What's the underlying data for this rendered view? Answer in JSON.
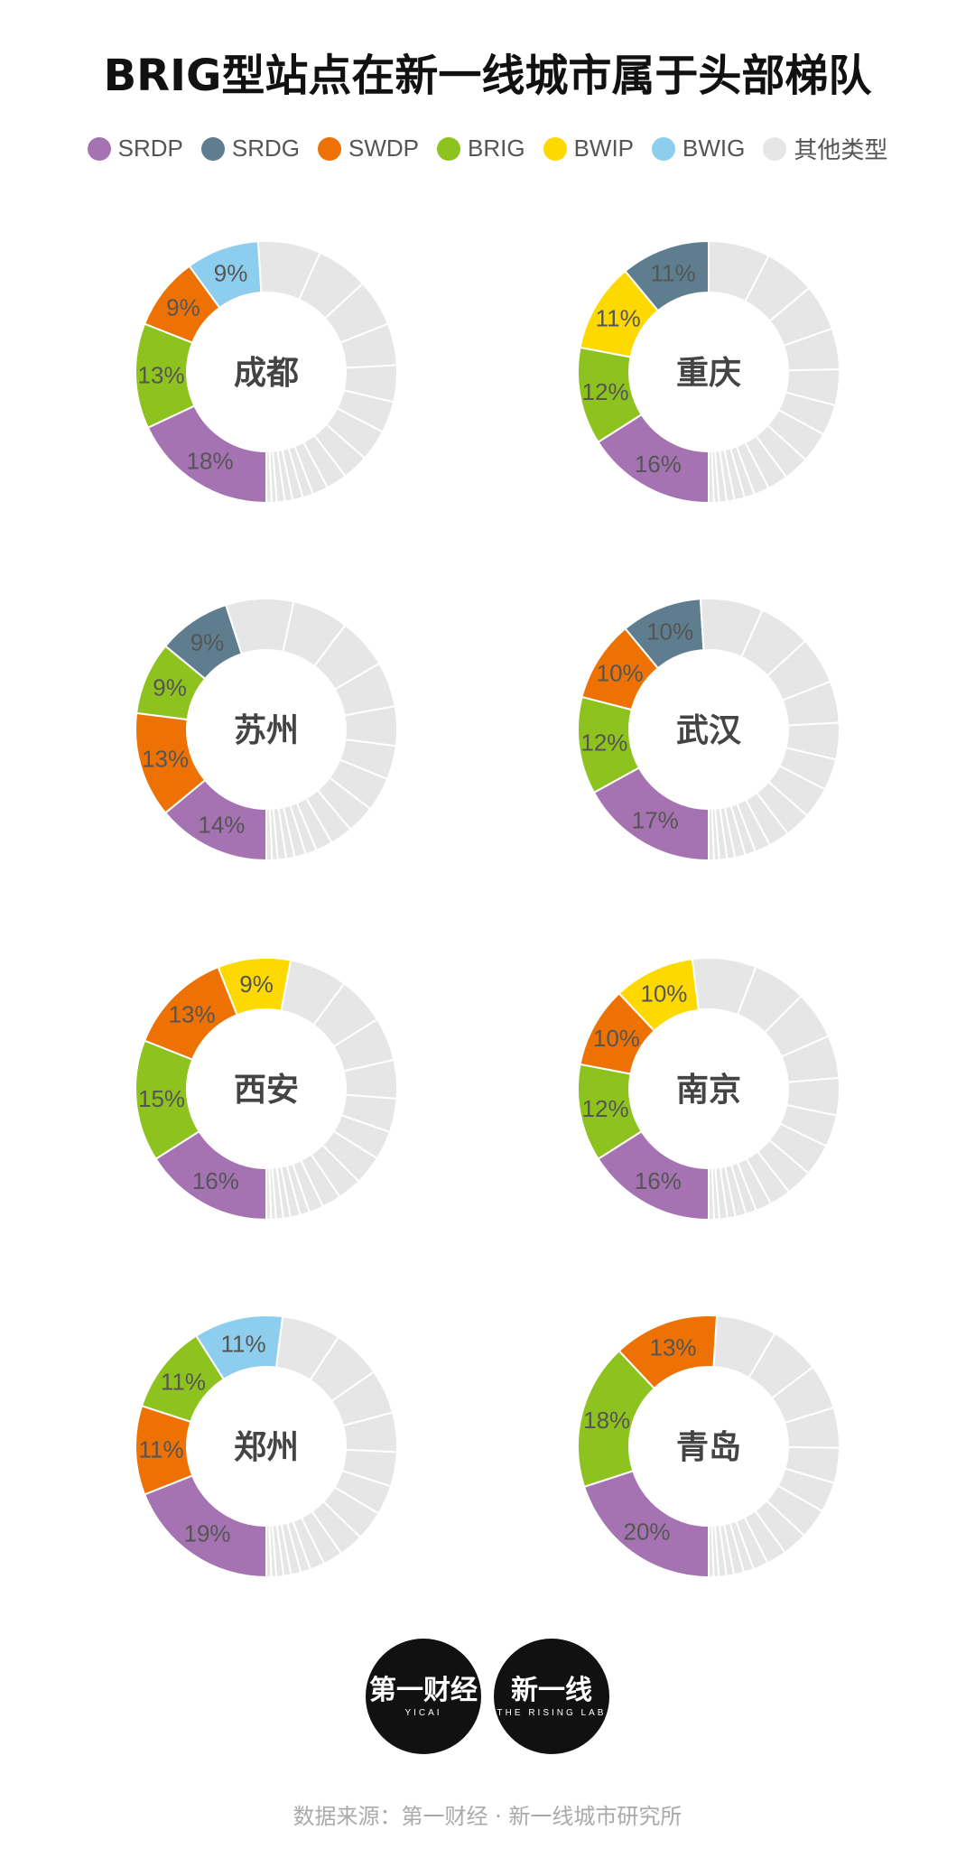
{
  "header": {
    "title": "BRIG型站点在新一线城市属于头部梯队"
  },
  "legend": [
    {
      "label": "SRDP",
      "color": "#a673b2"
    },
    {
      "label": "SRDG",
      "color": "#5e7d8f"
    },
    {
      "label": "SWDP",
      "color": "#ee7203"
    },
    {
      "label": "BRIG",
      "color": "#8dc21f"
    },
    {
      "label": "BWIP",
      "color": "#fdd900"
    },
    {
      "label": "BWIG",
      "color": "#8dcdee"
    },
    {
      "label": "其他类型",
      "color": "#e6e6e6"
    }
  ],
  "chart_data": [
    {
      "type": "pie",
      "title": "成都",
      "slices": [
        {
          "category": "SRDP",
          "value": 18,
          "label": "18%"
        },
        {
          "category": "BRIG",
          "value": 13,
          "label": "13%"
        },
        {
          "category": "SWDP",
          "value": 9,
          "label": "9%"
        },
        {
          "category": "BWIG",
          "value": 9,
          "label": "9%"
        }
      ]
    },
    {
      "type": "pie",
      "title": "重庆",
      "slices": [
        {
          "category": "SRDP",
          "value": 16,
          "label": "16%"
        },
        {
          "category": "BRIG",
          "value": 12,
          "label": "12%"
        },
        {
          "category": "BWIP",
          "value": 11,
          "label": "11%"
        },
        {
          "category": "SRDG",
          "value": 11,
          "label": "11%"
        }
      ]
    },
    {
      "type": "pie",
      "title": "苏州",
      "slices": [
        {
          "category": "SRDP",
          "value": 14,
          "label": "14%"
        },
        {
          "category": "SWDP",
          "value": 13,
          "label": "13%"
        },
        {
          "category": "BRIG",
          "value": 9,
          "label": "9%"
        },
        {
          "category": "SRDG",
          "value": 9,
          "label": "9%"
        }
      ]
    },
    {
      "type": "pie",
      "title": "武汉",
      "slices": [
        {
          "category": "SRDP",
          "value": 17,
          "label": "17%"
        },
        {
          "category": "BRIG",
          "value": 12,
          "label": "12%"
        },
        {
          "category": "SWDP",
          "value": 10,
          "label": "10%"
        },
        {
          "category": "SRDG",
          "value": 10,
          "label": "10%"
        }
      ]
    },
    {
      "type": "pie",
      "title": "西安",
      "slices": [
        {
          "category": "SRDP",
          "value": 16,
          "label": "16%"
        },
        {
          "category": "BRIG",
          "value": 15,
          "label": "15%"
        },
        {
          "category": "SWDP",
          "value": 13,
          "label": "13%"
        },
        {
          "category": "BWIP",
          "value": 9,
          "label": "9%"
        }
      ]
    },
    {
      "type": "pie",
      "title": "南京",
      "slices": [
        {
          "category": "SRDP",
          "value": 16,
          "label": "16%"
        },
        {
          "category": "BRIG",
          "value": 12,
          "label": "12%"
        },
        {
          "category": "SWDP",
          "value": 10,
          "label": "10%"
        },
        {
          "category": "BWIP",
          "value": 10,
          "label": "10%"
        }
      ]
    },
    {
      "type": "pie",
      "title": "郑州",
      "slices": [
        {
          "category": "SRDP",
          "value": 19,
          "label": "19%"
        },
        {
          "category": "SWDP",
          "value": 11,
          "label": "11%"
        },
        {
          "category": "BRIG",
          "value": 11,
          "label": "11%"
        },
        {
          "category": "BWIG",
          "value": 11,
          "label": "11%"
        }
      ]
    },
    {
      "type": "pie",
      "title": "青岛",
      "slices": [
        {
          "category": "SRDP",
          "value": 20,
          "label": "20%"
        },
        {
          "category": "BRIG",
          "value": 18,
          "label": "18%"
        },
        {
          "category": "SWDP",
          "value": 13,
          "label": "13%"
        }
      ]
    }
  ],
  "logos": [
    {
      "main": "第一财经",
      "sub": "YICAI"
    },
    {
      "main": "新一线",
      "sub": "THE RISING LAB"
    }
  ],
  "footer": {
    "source": "数据来源：第一财经 · 新一线城市研究所"
  }
}
